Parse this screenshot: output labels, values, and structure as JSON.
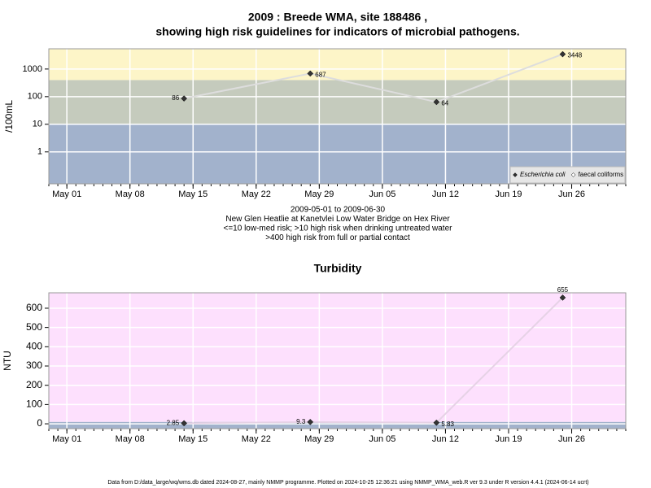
{
  "chart_data": [
    {
      "type": "line",
      "log_y": true,
      "title": [
        "2009 : Breede WMA, site 188486 ,",
        "showing high risk guidelines for indicators of microbial pathogens."
      ],
      "ylabel": "/100mL",
      "notes": [
        "2009-05-01 to 2009-06-30",
        "New Glen Heatlie at Kanetvlei Low Water Bridge on Hex River",
        "<=10 low-med risk; >10 high risk when drinking untreated water",
        ">400 high risk from full or partial contact"
      ],
      "x": [
        "2009-05-14",
        "2009-05-28",
        "2009-06-11",
        "2009-06-25"
      ],
      "series": [
        {
          "name": "Escherichia coli",
          "color": "#333333",
          "line_color": "#dddddd",
          "values": [
            86,
            687,
            64,
            3448
          ]
        },
        {
          "name": "faecal coliforms",
          "color": "#ffffff",
          "line_color": "#dddddd",
          "values": [
            null,
            null,
            null,
            null
          ]
        }
      ],
      "bands": [
        {
          "max": 10,
          "color": "#a2b2cc"
        },
        {
          "max": 400,
          "color": "#c5cbbd"
        },
        {
          "max": null,
          "color": "#fdf5c8"
        }
      ],
      "xlim": [
        "2009-04-29",
        "2009-07-02"
      ],
      "xticks": [
        {
          "value": "2009-05-01",
          "label": "May 01"
        },
        {
          "value": "2009-05-08",
          "label": "May 08"
        },
        {
          "value": "2009-05-15",
          "label": "May 15"
        },
        {
          "value": "2009-05-22",
          "label": "May 22"
        },
        {
          "value": "2009-05-29",
          "label": "May 29"
        },
        {
          "value": "2009-06-05",
          "label": "Jun 05"
        },
        {
          "value": "2009-06-12",
          "label": "Jun 12"
        },
        {
          "value": "2009-06-19",
          "label": "Jun 19"
        },
        {
          "value": "2009-06-26",
          "label": "Jun 26"
        }
      ],
      "ylim": [
        0.07,
        5400
      ],
      "yticks": [
        1,
        10,
        100,
        1000
      ],
      "grid": true,
      "legend": "lower right"
    },
    {
      "type": "line",
      "log_y": false,
      "title": [
        "Turbidity"
      ],
      "ylabel": "NTU",
      "x": [
        "2009-05-14",
        "2009-05-28",
        "2009-06-11",
        "2009-06-25"
      ],
      "series": [
        {
          "name": "Turbidity",
          "color": "#333333",
          "line_color": "#e6d2e6",
          "values": [
            2.85,
            9.3,
            5.83,
            655
          ]
        }
      ],
      "bands": [
        {
          "max": 10,
          "color": "#a2b2cc"
        },
        {
          "max": null,
          "color": "#fde0fd"
        }
      ],
      "xlim": [
        "2009-04-29",
        "2009-07-02"
      ],
      "xticks": [
        {
          "value": "2009-05-01",
          "label": "May 01"
        },
        {
          "value": "2009-05-08",
          "label": "May 08"
        },
        {
          "value": "2009-05-15",
          "label": "May 15"
        },
        {
          "value": "2009-05-22",
          "label": "May 22"
        },
        {
          "value": "2009-05-29",
          "label": "May 29"
        },
        {
          "value": "2009-06-05",
          "label": "Jun 05"
        },
        {
          "value": "2009-06-12",
          "label": "Jun 12"
        },
        {
          "value": "2009-06-19",
          "label": "Jun 19"
        },
        {
          "value": "2009-06-26",
          "label": "Jun 26"
        }
      ],
      "ylim": [
        -25,
        680
      ],
      "yticks": [
        0,
        100,
        200,
        300,
        400,
        500,
        600
      ],
      "grid": true
    }
  ],
  "footer": "Data from D:/data_large/wq/wms.db dated 2024-08-27, mainly NMMP programme. Plotted on 2024-10-25 12:36:21 using NMMP_WMA_web.R ver 9.3 under R version 4.4.1 (2024-06-14 ucrt)"
}
